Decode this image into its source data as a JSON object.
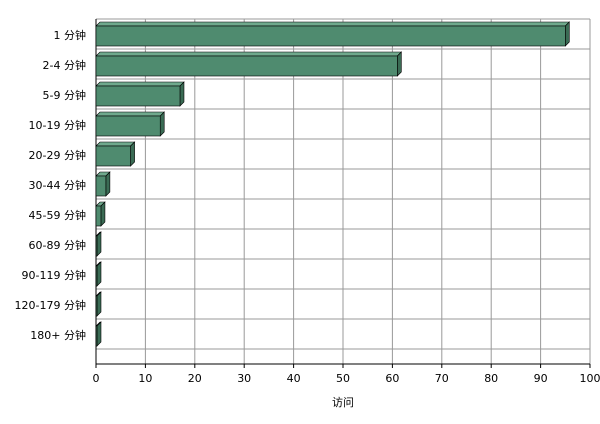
{
  "chart_data": {
    "type": "bar",
    "orientation": "horizontal",
    "x_label": "访问",
    "categories": [
      "1 分钟",
      "2-4 分钟",
      "5-9 分钟",
      "10-19 分钟",
      "20-29 分钟",
      "30-44 分钟",
      "45-59 分钟",
      "60-89 分钟",
      "90-119 分钟",
      "120-179 分钟",
      "180+ 分钟"
    ],
    "values": [
      95,
      61,
      17,
      13,
      7,
      2,
      1,
      0.2,
      0.2,
      0.2,
      0.2
    ],
    "color": "#4f8b6f",
    "xlim": [
      0,
      100
    ],
    "xticks": [
      0,
      10,
      20,
      30,
      40,
      50,
      60,
      70,
      80,
      90,
      100
    ],
    "grid": true
  }
}
